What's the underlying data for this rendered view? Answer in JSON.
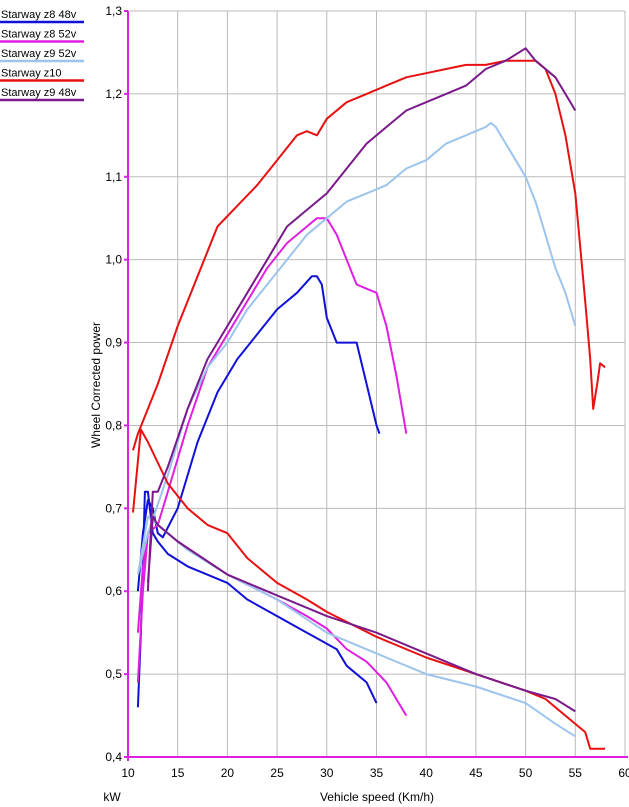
{
  "chart_data": {
    "type": "line",
    "xlabel": "Vehicle speed (Km/h)",
    "ylabel": "Wheel Corrected power",
    "unit_label": "kW",
    "xlim": [
      10,
      60
    ],
    "xticks": [
      10,
      15,
      20,
      25,
      30,
      35,
      40,
      45,
      50,
      55,
      60
    ],
    "ylim": [
      0.4,
      1.3
    ],
    "yticks": [
      {
        "value": 0.4,
        "label": "0,4"
      },
      {
        "value": 0.5,
        "label": "0,5"
      },
      {
        "value": 0.6,
        "label": "0,6"
      },
      {
        "value": 0.7,
        "label": "0,7"
      },
      {
        "value": 0.8,
        "label": "0,8"
      },
      {
        "value": 0.9,
        "label": "0,9"
      },
      {
        "value": 1.0,
        "label": "1,0"
      },
      {
        "value": 1.1,
        "label": "1,1"
      },
      {
        "value": 1.2,
        "label": "1,2"
      },
      {
        "value": 1.3,
        "label": "1,3"
      }
    ],
    "grid": true,
    "legend": "top-left",
    "series": [
      {
        "name": "Starway z8 48v",
        "color": "#1010d8",
        "x": [
          11,
          11.5,
          12,
          12.5,
          13,
          13.5,
          15,
          17,
          19,
          21,
          23,
          25,
          27,
          28.5,
          29,
          29.5,
          30,
          31,
          32,
          33,
          34,
          35,
          35.3,
          null,
          11,
          11.3,
          11.7,
          12,
          12.5,
          13,
          14,
          16,
          20,
          22,
          25,
          28,
          31,
          32,
          34,
          35
        ],
        "values": [
          0.6,
          0.67,
          0.71,
          0.7,
          0.67,
          0.665,
          0.7,
          0.78,
          0.84,
          0.88,
          0.91,
          0.94,
          0.96,
          0.98,
          0.98,
          0.97,
          0.93,
          0.9,
          0.9,
          0.9,
          0.85,
          0.8,
          0.79,
          null,
          0.46,
          0.55,
          0.72,
          0.72,
          0.67,
          0.66,
          0.645,
          0.63,
          0.61,
          0.59,
          0.57,
          0.55,
          0.53,
          0.51,
          0.49,
          0.465
        ]
      },
      {
        "name": "Starway z8 52v",
        "color": "#e020e0",
        "x": [
          11,
          11.5,
          12,
          13,
          14,
          16,
          18,
          20,
          22,
          24,
          26,
          28,
          29,
          30,
          31,
          32,
          33,
          34,
          35,
          36,
          37,
          38,
          null,
          11,
          11.5,
          12,
          13,
          15,
          20,
          25,
          28,
          30,
          32,
          34,
          36,
          38
        ],
        "values": [
          0.55,
          0.63,
          0.67,
          0.68,
          0.72,
          0.8,
          0.87,
          0.91,
          0.95,
          0.99,
          1.02,
          1.04,
          1.05,
          1.05,
          1.03,
          1.0,
          0.97,
          0.965,
          0.96,
          0.92,
          0.86,
          0.79,
          null,
          0.49,
          0.6,
          0.67,
          0.68,
          0.66,
          0.62,
          0.59,
          0.57,
          0.555,
          0.53,
          0.515,
          0.49,
          0.45
        ]
      },
      {
        "name": "Starway z9 52v",
        "color": "#9cc4ec",
        "x": [
          11,
          12,
          14,
          16,
          18,
          20,
          22,
          24,
          26,
          28,
          30,
          32,
          34,
          36,
          38,
          40,
          42,
          44,
          46,
          46.5,
          47,
          48,
          49,
          50,
          51,
          52,
          53,
          54,
          55,
          null,
          11,
          12,
          14,
          16,
          20,
          25,
          30,
          35,
          40,
          45,
          50,
          53,
          55
        ],
        "values": [
          0.62,
          0.67,
          0.74,
          0.82,
          0.87,
          0.9,
          0.94,
          0.97,
          1.0,
          1.03,
          1.05,
          1.07,
          1.08,
          1.09,
          1.11,
          1.12,
          1.14,
          1.15,
          1.16,
          1.165,
          1.16,
          1.14,
          1.12,
          1.1,
          1.07,
          1.03,
          0.99,
          0.96,
          0.92,
          null,
          0.62,
          0.69,
          0.67,
          0.65,
          0.62,
          0.59,
          0.55,
          0.525,
          0.5,
          0.485,
          0.465,
          0.44,
          0.425
        ]
      },
      {
        "name": "Starway z10",
        "color": "#e81010",
        "x": [
          10.5,
          11,
          12,
          13,
          15,
          17,
          19,
          21,
          23,
          25,
          27,
          28,
          29,
          30,
          32,
          34,
          36,
          38,
          40,
          42,
          44,
          46,
          48,
          50,
          51,
          52,
          53,
          54,
          55,
          56,
          56.5,
          56.8,
          57.2,
          57.5,
          58,
          null,
          10.5,
          11.3,
          12,
          14,
          16,
          18,
          20,
          22,
          25,
          28,
          30,
          35,
          40,
          45,
          50,
          52,
          54,
          56,
          56.5,
          57,
          58
        ],
        "values": [
          0.77,
          0.79,
          0.82,
          0.85,
          0.92,
          0.98,
          1.04,
          1.065,
          1.09,
          1.12,
          1.15,
          1.155,
          1.15,
          1.17,
          1.19,
          1.2,
          1.21,
          1.22,
          1.225,
          1.23,
          1.235,
          1.235,
          1.24,
          1.24,
          1.24,
          1.23,
          1.2,
          1.15,
          1.08,
          0.95,
          0.88,
          0.82,
          0.85,
          0.875,
          0.87,
          null,
          0.695,
          0.795,
          0.78,
          0.73,
          0.7,
          0.68,
          0.67,
          0.64,
          0.61,
          0.59,
          0.575,
          0.545,
          0.52,
          0.5,
          0.48,
          0.47,
          0.45,
          0.43,
          0.41,
          0.41,
          0.41
        ]
      },
      {
        "name": "Starway z9 48v",
        "color": "#7a1a8a",
        "x": [
          12,
          12.5,
          13,
          14,
          16,
          18,
          20,
          22,
          24,
          26,
          28,
          30,
          32,
          34,
          36,
          38,
          40,
          42,
          44,
          46,
          48,
          50,
          51,
          52,
          53,
          54,
          55,
          null,
          12,
          12.5,
          13,
          15,
          20,
          25,
          30,
          35,
          40,
          45,
          50,
          53,
          55
        ],
        "values": [
          0.6,
          0.72,
          0.72,
          0.75,
          0.82,
          0.88,
          0.92,
          0.96,
          1.0,
          1.04,
          1.06,
          1.08,
          1.11,
          1.14,
          1.16,
          1.18,
          1.19,
          1.2,
          1.21,
          1.23,
          1.24,
          1.255,
          1.24,
          1.23,
          1.22,
          1.2,
          1.18,
          null,
          0.61,
          0.69,
          0.68,
          0.66,
          0.62,
          0.595,
          0.57,
          0.55,
          0.525,
          0.5,
          0.48,
          0.47,
          0.455
        ]
      }
    ]
  }
}
